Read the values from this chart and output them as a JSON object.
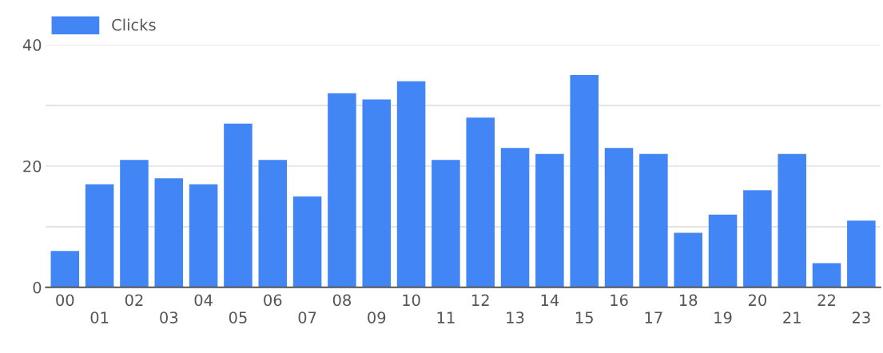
{
  "chart_data": {
    "type": "bar",
    "categories": [
      "00",
      "01",
      "02",
      "03",
      "04",
      "05",
      "06",
      "07",
      "08",
      "09",
      "10",
      "11",
      "12",
      "13",
      "14",
      "15",
      "16",
      "17",
      "18",
      "19",
      "20",
      "21",
      "22",
      "23"
    ],
    "series": [
      {
        "name": "Clicks",
        "color": "#4285f4",
        "values": [
          6,
          17,
          21,
          18,
          17,
          27,
          21,
          15,
          32,
          31,
          34,
          21,
          28,
          23,
          22,
          35,
          23,
          22,
          9,
          12,
          16,
          22,
          4,
          11
        ]
      }
    ],
    "ylim": [
      0,
      40
    ],
    "yticks": [
      0,
      {
        "value": 10,
        "label": null
      },
      20,
      {
        "value": 30,
        "label": null
      },
      40
    ],
    "grid": "y",
    "legend": "top left"
  }
}
